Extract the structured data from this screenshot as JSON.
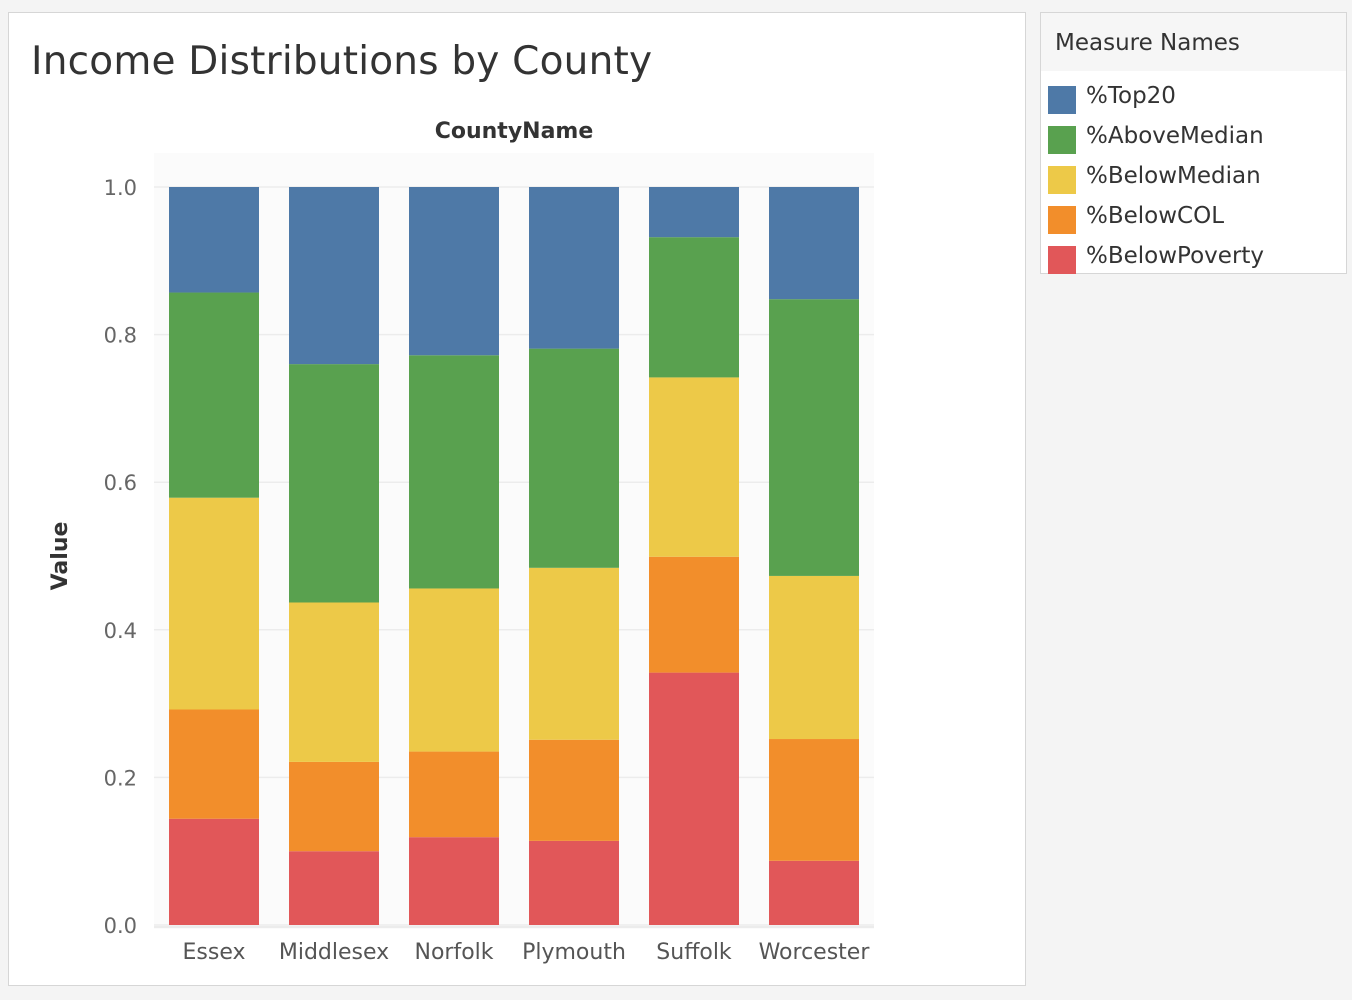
{
  "chart_data": {
    "type": "bar",
    "stacked": true,
    "title": "Income Distributions by County",
    "xlabel": "CountyName",
    "ylabel": "Value",
    "ylim": [
      0,
      1.0
    ],
    "yticks": [
      "0.0",
      "0.2",
      "0.4",
      "0.6",
      "0.8",
      "1.0"
    ],
    "categories": [
      "Essex",
      "Middlesex",
      "Norfolk",
      "Plymouth",
      "Suffolk",
      "Worcester"
    ],
    "grid": true,
    "legend_position": "right",
    "series": [
      {
        "name": "%BelowPoverty",
        "color": "#e15759",
        "values": [
          0.144,
          0.1,
          0.119,
          0.114,
          0.342,
          0.087
        ]
      },
      {
        "name": "%BelowCOL",
        "color": "#f28e2b",
        "values": [
          0.148,
          0.121,
          0.116,
          0.137,
          0.157,
          0.165
        ]
      },
      {
        "name": "%BelowMedian",
        "color": "#edc948",
        "values": [
          0.287,
          0.216,
          0.221,
          0.233,
          0.243,
          0.221
        ]
      },
      {
        "name": "%AboveMedian",
        "color": "#59a14f",
        "values": [
          0.278,
          0.323,
          0.316,
          0.297,
          0.19,
          0.375
        ]
      },
      {
        "name": "%Top20",
        "color": "#4e79a7",
        "values": [
          0.143,
          0.24,
          0.228,
          0.219,
          0.068,
          0.152
        ]
      }
    ]
  },
  "legend": {
    "title": "Measure Names",
    "items": [
      {
        "name": "%Top20",
        "color": "#4e79a7"
      },
      {
        "name": "%AboveMedian",
        "color": "#59a14f"
      },
      {
        "name": "%BelowMedian",
        "color": "#edc948"
      },
      {
        "name": "%BelowCOL",
        "color": "#f28e2b"
      },
      {
        "name": "%BelowPoverty",
        "color": "#e15759"
      }
    ]
  }
}
